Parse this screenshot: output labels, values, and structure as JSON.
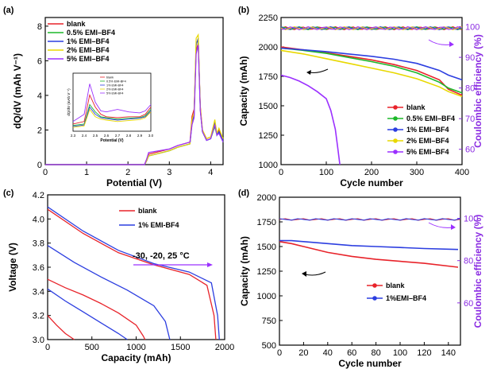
{
  "chart_data": [
    {
      "panel": "(a)",
      "type": "line",
      "xlabel": "Potential (V)",
      "ylabel": "dQ/dV (mAh V⁻¹)",
      "xlim": [
        0,
        4.3
      ],
      "ylim": [
        0,
        8.5
      ],
      "xticks": [
        0,
        1,
        2,
        3,
        4
      ],
      "yticks": [
        0,
        2,
        4,
        6,
        8
      ],
      "legend_position": "top-left",
      "series": [
        {
          "name": "blank",
          "color": "#e8232a",
          "x": [
            0,
            2.4,
            2.45,
            2.5,
            3.0,
            3.2,
            3.5,
            3.55,
            3.6,
            3.65,
            3.7,
            3.75,
            3.8,
            3.9,
            4.0,
            4.1,
            4.15,
            4.2,
            4.3
          ],
          "y": [
            0,
            0,
            0.3,
            0.6,
            0.9,
            1.1,
            1.3,
            2.8,
            3.2,
            6.6,
            7.0,
            3.4,
            2.0,
            1.5,
            1.6,
            2.4,
            1.8,
            2.0,
            1.4
          ]
        },
        {
          "name": "0.5% EMI–BF4",
          "color": "#1db82a",
          "x": [
            0,
            2.4,
            2.45,
            2.5,
            3.0,
            3.2,
            3.5,
            3.55,
            3.6,
            3.65,
            3.7,
            3.75,
            3.8,
            3.9,
            4.0,
            4.1,
            4.15,
            4.2,
            4.3
          ],
          "y": [
            0,
            0,
            0.2,
            0.5,
            0.8,
            1.0,
            1.2,
            2.5,
            2.9,
            7.0,
            7.2,
            3.2,
            1.9,
            1.4,
            1.5,
            2.2,
            1.7,
            1.9,
            1.3
          ]
        },
        {
          "name": "1% EMI–BF4",
          "color": "#2c3ee0",
          "x": [
            0,
            2.4,
            2.45,
            2.5,
            3.0,
            3.2,
            3.5,
            3.55,
            3.6,
            3.65,
            3.7,
            3.75,
            3.8,
            3.9,
            4.0,
            4.1,
            4.15,
            4.2,
            4.3
          ],
          "y": [
            0,
            0,
            0.2,
            0.5,
            0.8,
            1.0,
            1.2,
            2.4,
            2.8,
            6.9,
            7.3,
            3.2,
            1.9,
            1.4,
            1.5,
            2.5,
            1.7,
            1.9,
            1.4
          ]
        },
        {
          "name": "2% EMI–BF4",
          "color": "#e8d800",
          "x": [
            0,
            2.4,
            2.45,
            2.5,
            3.0,
            3.2,
            3.5,
            3.55,
            3.6,
            3.65,
            3.7,
            3.75,
            3.8,
            3.9,
            4.0,
            4.1,
            4.15,
            4.2,
            4.3
          ],
          "y": [
            0,
            0,
            0.2,
            0.5,
            0.8,
            1.0,
            1.2,
            2.6,
            3.0,
            7.3,
            7.5,
            3.3,
            2.0,
            1.5,
            1.6,
            2.6,
            1.8,
            2.1,
            1.5
          ]
        },
        {
          "name": "5% EMI–BF4",
          "color": "#9b30ff",
          "x": [
            0,
            2.4,
            2.45,
            2.5,
            3.0,
            3.2,
            3.5,
            3.55,
            3.6,
            3.65,
            3.7,
            3.75,
            3.8,
            3.9,
            4.0,
            4.1,
            4.15,
            4.2,
            4.3
          ],
          "y": [
            0,
            0,
            0.3,
            0.7,
            0.9,
            1.1,
            1.3,
            2.3,
            2.7,
            6.4,
            6.9,
            3.1,
            1.9,
            1.4,
            1.5,
            2.3,
            1.7,
            1.8,
            1.3
          ]
        }
      ],
      "inset": {
        "xlabel": "Potential (V)",
        "ylabel": "dQ/dV (mAh V⁻¹)",
        "xticks": [
          "2.3",
          "2.4",
          "2.5",
          "2.6",
          "2.7",
          "2.8",
          "2.9",
          "3.0"
        ],
        "legend": [
          "blank",
          "0.5% EMI-BF4",
          "1% EMI-BF4",
          "2% EMI-BF4",
          "5% EMI-BF4"
        ]
      }
    },
    {
      "panel": "(b)",
      "type": "line",
      "xlabel": "Cycle number",
      "ylabel": "Capacity (mAh)",
      "ylabel_right": "Coulombic efficiency (%)",
      "xlim": [
        0,
        400
      ],
      "ylim": [
        1000,
        2250
      ],
      "ylim_right": [
        55,
        103
      ],
      "xticks": [
        0,
        100,
        200,
        300,
        400
      ],
      "yticks": [
        1000,
        1250,
        1500,
        1750,
        2000,
        2250
      ],
      "yticks_right": [
        60,
        70,
        80,
        90,
        100
      ],
      "legend_position": "bottom-right",
      "capacity_series": [
        {
          "name": "blank",
          "color": "#e8232a",
          "x": [
            0,
            50,
            100,
            150,
            200,
            250,
            300,
            350,
            370,
            400
          ],
          "y": [
            2000,
            1975,
            1950,
            1920,
            1890,
            1850,
            1800,
            1720,
            1640,
            1590
          ]
        },
        {
          "name": "0.5% EMI–BF4",
          "color": "#1db82a",
          "x": [
            0,
            50,
            100,
            150,
            200,
            250,
            300,
            350,
            370,
            400
          ],
          "y": [
            1990,
            1970,
            1945,
            1910,
            1875,
            1835,
            1780,
            1700,
            1650,
            1610
          ]
        },
        {
          "name": "1% EMI–BF4",
          "color": "#2c3ee0",
          "x": [
            0,
            50,
            100,
            150,
            200,
            250,
            300,
            350,
            370,
            400
          ],
          "y": [
            1990,
            1975,
            1960,
            1940,
            1920,
            1895,
            1860,
            1800,
            1760,
            1720
          ]
        },
        {
          "name": "2% EMI–BF4",
          "color": "#e8d800",
          "x": [
            0,
            50,
            100,
            150,
            200,
            250,
            300,
            350,
            370,
            400
          ],
          "y": [
            1970,
            1940,
            1900,
            1860,
            1820,
            1780,
            1730,
            1660,
            1620,
            1580
          ]
        },
        {
          "name": "5% EMI–BF4",
          "color": "#9b30ff",
          "x": [
            0,
            20,
            40,
            60,
            80,
            100,
            110,
            120,
            125,
            130
          ],
          "y": [
            1760,
            1740,
            1710,
            1670,
            1620,
            1560,
            1460,
            1300,
            1150,
            1000
          ]
        }
      ],
      "efficiency_level": 99.5
    },
    {
      "panel": "(c)",
      "type": "line",
      "xlabel": "Capacity (mAh)",
      "ylabel": "Voltage (V)",
      "xlim": [
        0,
        2000
      ],
      "ylim": [
        3.0,
        4.2
      ],
      "xticks": [
        0,
        500,
        1000,
        1500,
        2000
      ],
      "yticks": [
        3.0,
        3.2,
        3.4,
        3.6,
        3.8,
        4.0,
        4.2
      ],
      "annotation": "-30, -20, 25 °C",
      "legend_position": "top-right",
      "series": [
        {
          "name": "blank",
          "color": "#e8232a",
          "curves": [
            {
              "x": [
                0,
                400,
                800,
                1200,
                1600,
                1800,
                1880,
                1900
              ],
              "y": [
                4.08,
                3.88,
                3.72,
                3.62,
                3.54,
                3.45,
                3.2,
                3.0
              ]
            },
            {
              "x": [
                0,
                200,
                400,
                600,
                800,
                1000,
                1080,
                1100
              ],
              "y": [
                3.5,
                3.43,
                3.37,
                3.3,
                3.22,
                3.12,
                3.03,
                3.0
              ]
            },
            {
              "x": [
                0,
                100,
                200,
                300
              ],
              "y": [
                3.2,
                3.12,
                3.05,
                3.0
              ]
            }
          ]
        },
        {
          "name": "1% EMI-BF4",
          "color": "#2c3ee0",
          "curves": [
            {
              "x": [
                0,
                400,
                800,
                1200,
                1600,
                1850,
                1920,
                1940
              ],
              "y": [
                4.1,
                3.9,
                3.74,
                3.63,
                3.56,
                3.47,
                3.2,
                3.0
              ]
            },
            {
              "x": [
                0,
                300,
                600,
                900,
                1200,
                1330,
                1380
              ],
              "y": [
                3.78,
                3.64,
                3.52,
                3.41,
                3.28,
                3.15,
                3.0
              ]
            },
            {
              "x": [
                0,
                200,
                400,
                600,
                800,
                900
              ],
              "y": [
                3.42,
                3.32,
                3.23,
                3.14,
                3.05,
                3.0
              ]
            }
          ]
        }
      ]
    },
    {
      "panel": "(d)",
      "type": "line",
      "xlabel": "Cycle number",
      "ylabel": "Capacity (mAh)",
      "ylabel_right": "Coulombic efficiency (%)",
      "xlim": [
        0,
        150
      ],
      "ylim": [
        500,
        2000
      ],
      "ylim_right": [
        40,
        110
      ],
      "xticks": [
        0,
        20,
        40,
        60,
        80,
        100,
        120,
        140
      ],
      "yticks": [
        500,
        750,
        1000,
        1250,
        1500,
        1750,
        2000
      ],
      "yticks_right": [
        60,
        80,
        100
      ],
      "legend_position": "bottom-right",
      "capacity_series": [
        {
          "name": "blank",
          "color": "#e8232a",
          "x": [
            0,
            10,
            20,
            40,
            60,
            80,
            100,
            120,
            148
          ],
          "y": [
            1550,
            1530,
            1500,
            1440,
            1400,
            1370,
            1350,
            1330,
            1290
          ]
        },
        {
          "name": "1%EMI–BF4",
          "color": "#2c3ee0",
          "x": [
            0,
            10,
            20,
            40,
            60,
            80,
            100,
            120,
            148
          ],
          "y": [
            1560,
            1560,
            1550,
            1530,
            1510,
            1500,
            1490,
            1480,
            1470
          ]
        }
      ],
      "efficiency_level": 99.5
    }
  ]
}
